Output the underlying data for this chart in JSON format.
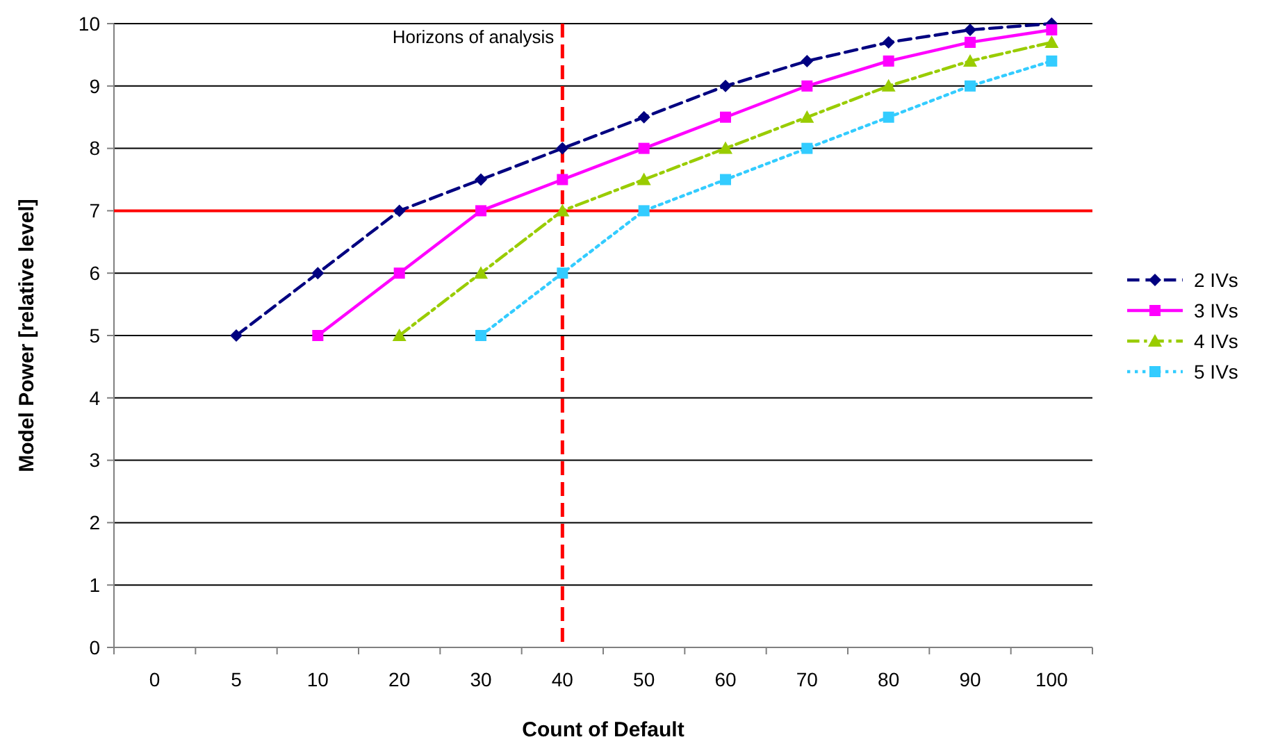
{
  "chart_data": {
    "type": "line",
    "xlabel": "Count of Default",
    "ylabel": "Model Power [relative level]",
    "categories": [
      "0",
      "5",
      "10",
      "20",
      "30",
      "40",
      "50",
      "60",
      "70",
      "80",
      "90",
      "100"
    ],
    "ylim": [
      0,
      10
    ],
    "yticks": [
      0,
      1,
      2,
      3,
      4,
      5,
      6,
      7,
      8,
      9,
      10
    ],
    "grid": "y",
    "legend": "right",
    "series": [
      {
        "name": "2 IVs",
        "color": "#000080",
        "marker": "diamond",
        "line_style": "dashed",
        "values": [
          null,
          5,
          6,
          7,
          7.5,
          8,
          8.5,
          9,
          9.4,
          9.7,
          9.9,
          10
        ]
      },
      {
        "name": "3 IVs",
        "color": "#ff00ff",
        "marker": "square",
        "line_style": "solid",
        "values": [
          null,
          null,
          5,
          6,
          7,
          7.5,
          8,
          8.5,
          9,
          9.4,
          9.7,
          9.9
        ]
      },
      {
        "name": "4 IVs",
        "color": "#99cc00",
        "marker": "triangle",
        "line_style": "dashdot",
        "values": [
          null,
          null,
          null,
          5,
          6,
          7,
          7.5,
          8,
          8.5,
          9,
          9.4,
          9.7
        ]
      },
      {
        "name": "5 IVs",
        "color": "#33ccff",
        "marker": "square",
        "line_style": "dotted",
        "values": [
          null,
          null,
          null,
          null,
          5,
          6,
          7,
          7.5,
          8,
          8.5,
          9,
          9.4
        ]
      }
    ],
    "ref_lines": [
      {
        "axis": "y",
        "value": 7,
        "color": "#ff0000",
        "line_style": "solid"
      },
      {
        "axis": "x",
        "value": "40",
        "label": "Horizons of analysis",
        "color": "#ff0000",
        "line_style": "dashed"
      }
    ]
  }
}
